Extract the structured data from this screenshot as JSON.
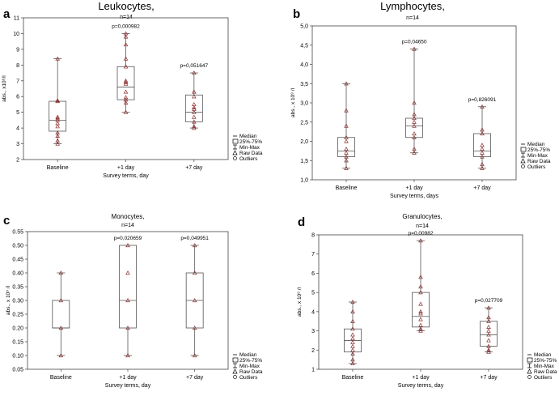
{
  "legend": {
    "median": "Median",
    "box": "25%-75%",
    "whisker": "Min-Max",
    "raw": "Raw Data",
    "outliers": "Outliers"
  },
  "colors": {
    "box": "#555555",
    "marker": "#8b2e2e",
    "axis": "#444444"
  },
  "chart_data": [
    {
      "type": "boxplot",
      "panel_letter": "a",
      "title": "Leukocytes,",
      "title_style": "large",
      "subtitle": "n=14",
      "ylabel": "abs., x10⁹/l",
      "xlabel": "Survey terms, day",
      "ylim": [
        2,
        11
      ],
      "yticks": [
        "2",
        "3",
        "4",
        "5",
        "6",
        "7",
        "8",
        "9",
        "10",
        "11"
      ],
      "categories": [
        "Baseline",
        "+1 day",
        "+7 day"
      ],
      "boxes": [
        {
          "min": 3.0,
          "q1": 3.8,
          "median": 4.5,
          "q3": 5.7,
          "max": 8.4,
          "p_label": "",
          "raw": [
            3.0,
            3.2,
            3.5,
            3.7,
            4.1,
            4.3,
            4.5,
            4.6,
            4.7,
            5.7,
            5.75,
            8.4
          ]
        },
        {
          "min": 5.0,
          "q1": 5.8,
          "median": 6.6,
          "q3": 7.9,
          "max": 10.0,
          "p_label": "p=0,000982",
          "raw": [
            5.0,
            5.6,
            5.8,
            5.95,
            6.3,
            6.8,
            6.9,
            7.0,
            7.9,
            8.4,
            9.3,
            9.8,
            10.0
          ]
        },
        {
          "min": 4.0,
          "q1": 4.4,
          "median": 5.0,
          "q3": 6.1,
          "max": 7.5,
          "p_label": "p=0,051647",
          "raw": [
            4.0,
            4.1,
            4.4,
            4.7,
            5.0,
            5.2,
            5.3,
            5.5,
            6.0,
            6.3,
            7.5
          ]
        }
      ]
    },
    {
      "type": "boxplot",
      "panel_letter": "b",
      "title": "Lymphocytes,",
      "title_style": "large",
      "subtitle": "n=14",
      "ylabel": "abs., x 10⁹ /l",
      "xlabel": "Survey terms, days",
      "ylim": [
        1.0,
        5.0
      ],
      "yticks": [
        "1,0",
        "1,5",
        "2,0",
        "2,5",
        "3,0",
        "3,5",
        "4,0",
        "4,5",
        "5,0"
      ],
      "categories": [
        "Baseline",
        "+1 day",
        "+7 day"
      ],
      "boxes": [
        {
          "min": 1.3,
          "q1": 1.6,
          "median": 1.75,
          "q3": 2.1,
          "max": 3.5,
          "p_label": "",
          "raw": [
            1.3,
            1.5,
            1.6,
            1.7,
            1.8,
            2.0,
            2.1,
            2.4,
            2.8,
            3.5
          ]
        },
        {
          "min": 1.7,
          "q1": 2.1,
          "median": 2.4,
          "q3": 2.6,
          "max": 4.4,
          "p_label": "p=0,04650",
          "raw": [
            1.7,
            1.8,
            2.1,
            2.2,
            2.4,
            2.5,
            2.6,
            2.7,
            3.0,
            4.4
          ]
        },
        {
          "min": 1.3,
          "q1": 1.6,
          "median": 1.75,
          "q3": 2.2,
          "max": 2.9,
          "p_label": "p=0,826091",
          "raw": [
            1.3,
            1.4,
            1.6,
            1.7,
            1.8,
            1.9,
            2.2,
            2.3,
            2.9
          ]
        }
      ]
    },
    {
      "type": "boxplot",
      "panel_letter": "c",
      "title": "Monocytes,",
      "title_style": "small",
      "subtitle": "n=14",
      "ylabel": "abs., x 10⁹ /l",
      "xlabel": "Survey terms, day",
      "ylim": [
        0.05,
        0.55
      ],
      "yticks": [
        "0.05",
        "0.10",
        "0.15",
        "0.20",
        "0.25",
        "0.30",
        "0.35",
        "0.40",
        "0.45",
        "0.50",
        "0.55"
      ],
      "categories": [
        "Baseline",
        "+1 day",
        "+7 day"
      ],
      "boxes": [
        {
          "min": 0.1,
          "q1": 0.2,
          "median": 0.2,
          "q3": 0.3,
          "max": 0.4,
          "p_label": "",
          "raw": [
            0.1,
            0.2,
            0.3,
            0.4
          ]
        },
        {
          "min": 0.1,
          "q1": 0.2,
          "median": 0.3,
          "q3": 0.5,
          "max": 0.5,
          "p_label": "p=0,020659",
          "raw": [
            0.1,
            0.2,
            0.3,
            0.4,
            0.5
          ]
        },
        {
          "min": 0.1,
          "q1": 0.2,
          "median": 0.3,
          "q3": 0.4,
          "max": 0.5,
          "p_label": "p=0,049951",
          "raw": [
            0.1,
            0.2,
            0.3,
            0.4,
            0.5
          ]
        }
      ]
    },
    {
      "type": "boxplot",
      "panel_letter": "d",
      "title": "Granulocytes,",
      "title_style": "small",
      "subtitle": "n=14",
      "ylabel": "abs., x 10⁹ /l",
      "xlabel": "Survey terms, day",
      "ylim": [
        1,
        8
      ],
      "yticks": [
        "1",
        "2",
        "3",
        "4",
        "5",
        "6",
        "7",
        "8"
      ],
      "categories": [
        "Baseline",
        "+1 day",
        "+7 day"
      ],
      "boxes": [
        {
          "min": 1.3,
          "q1": 1.9,
          "median": 2.5,
          "q3": 3.1,
          "max": 4.5,
          "p_label": "",
          "raw": [
            1.3,
            1.5,
            1.8,
            2.0,
            2.2,
            2.4,
            2.6,
            2.8,
            3.1,
            3.5,
            4.0,
            4.5
          ]
        },
        {
          "min": 3.0,
          "q1": 3.2,
          "median": 3.75,
          "q3": 5.0,
          "max": 7.7,
          "p_label": "p=0,00982",
          "raw": [
            3.0,
            3.1,
            3.3,
            3.6,
            3.9,
            4.0,
            4.4,
            5.0,
            5.3,
            5.8,
            7.7
          ]
        },
        {
          "min": 1.9,
          "q1": 2.2,
          "median": 2.8,
          "q3": 3.5,
          "max": 4.2,
          "p_label": "p=0,027709",
          "raw": [
            1.9,
            2.0,
            2.2,
            2.5,
            2.8,
            3.0,
            3.2,
            3.5,
            3.7,
            4.2
          ]
        }
      ]
    }
  ]
}
